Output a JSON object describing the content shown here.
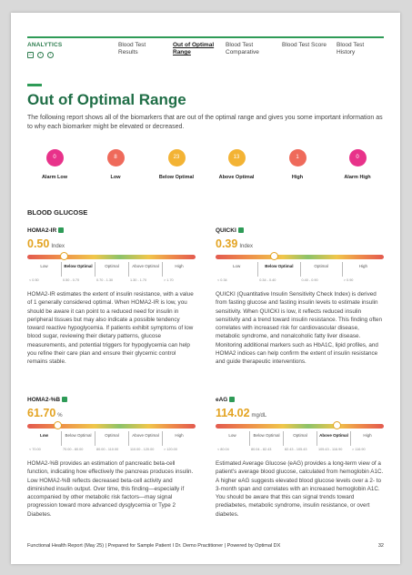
{
  "nav": {
    "brand": "ANALYTICS",
    "tabs": [
      {
        "label": "Blood Test Results"
      },
      {
        "label": "Out of Optimal Range"
      },
      {
        "label": "Blood Test Comparative"
      },
      {
        "label": "Blood Test Score"
      },
      {
        "label": "Blood Test History"
      }
    ],
    "icons": [
      "home-icon",
      "back-icon",
      "forward-icon"
    ]
  },
  "page": {
    "title": "Out of Optimal Range",
    "intro": "The following report shows all of the biomarkers that are out of the optimal range and gives you some important information as to why each biomarker might be elevated or decreased."
  },
  "legend": [
    {
      "count": "0",
      "label": "Alarm Low",
      "color": "#e8328a"
    },
    {
      "count": "8",
      "label": "Low",
      "color": "#ef6a5b"
    },
    {
      "count": "23",
      "label": "Below Optimal",
      "color": "#f3b334"
    },
    {
      "count": "13",
      "label": "Above Optimal",
      "color": "#f3b334"
    },
    {
      "count": "1",
      "label": "High",
      "color": "#ef6a5b"
    },
    {
      "count": "0",
      "label": "Alarm High",
      "color": "#e8328a"
    }
  ],
  "section": "BLOOD GLUCOSE",
  "markers": [
    {
      "name": "HOMA2-IR",
      "value": "0.50",
      "unit": "Index",
      "position_pct": 22,
      "zones": [
        "Low",
        "Below Optimal",
        "Optimal",
        "Above Optimal",
        "High"
      ],
      "bold_zone": 1,
      "ranges": [
        "< 0.50",
        "0.50 - 0.70",
        "0.70 - 1.30",
        "1.30 - 1.70",
        "> 1.70"
      ],
      "description": "HOMA2-IR estimates the extent of insulin resistance, with a value of 1 generally considered optimal. When HOMA2-IR is low, you should be aware it can point to a reduced need for insulin in peripheral tissues but may also indicate a possible tendency toward reactive hypoglycemia. If patients exhibit symptoms of low blood sugar, reviewing their dietary patterns, glucose measurements, and potential triggers for hypoglycemia can help you refine their care plan and ensure their glycemic control remains stable."
    },
    {
      "name": "QUICKI",
      "value": "0.39",
      "unit": "Index",
      "position_pct": 35,
      "zones": [
        "Low",
        "Below Optimal",
        "Optimal",
        "High"
      ],
      "bold_zone": 1,
      "ranges": [
        "< 0.34",
        "0.34 - 0.40",
        "0.40 - 0.90",
        "> 0.90"
      ],
      "description": "QUICKI (Quantitative Insulin Sensitivity Check Index) is derived from fasting glucose and fasting insulin levels to estimate insulin sensitivity. When QUICKI is low, it reflects reduced insulin sensitivity and a trend toward insulin resistance. This finding often correlates with increased risk for cardiovascular disease, metabolic syndrome, and nonalcoholic fatty liver disease. Monitoring additional markers such as HbA1C, lipid profiles, and HOMA2 indices can help confirm the extent of insulin resistance and guide therapeutic interventions."
    },
    {
      "name": "HOMA2-%B",
      "value": "61.70",
      "unit": "%",
      "position_pct": 18,
      "zones": [
        "Low",
        "Below Optimal",
        "Optimal",
        "Above Optimal",
        "High"
      ],
      "bold_zone": 0,
      "ranges": [
        "< 70.00",
        "70.00 - 80.00",
        "80.00 - 110.00",
        "110.00 - 120.00",
        "> 120.00"
      ],
      "description": "HOMA2-%B provides an estimation of pancreatic beta-cell function, indicating how effectively the pancreas produces insulin. Low HOMA2-%B reflects decreased beta-cell activity and diminished insulin output. Over time, this finding—especially if accompanied by other metabolic risk factors—may signal progression toward more advanced dysglycemia or Type 2 Diabetes."
    },
    {
      "name": "eAG",
      "value": "114.02",
      "unit": "mg/dL",
      "position_pct": 72,
      "zones": [
        "Low",
        "Below Optimal",
        "Optimal",
        "Above Optimal",
        "High"
      ],
      "bold_zone": 3,
      "ranges": [
        "< 80.04",
        "80.04 - 82.43",
        "82.43 - 105.43",
        "105.43 - 116.90",
        "> 116.90"
      ],
      "description": "Estimated Average Glucose (eAG) provides a long-term view of a patient's average blood glucose, calculated from hemoglobin A1C. A higher eAG suggests elevated blood glucose levels over a 2- to 3-month span and correlates with an increased hemoglobin A1C. You should be aware that this can signal trends toward prediabetes, metabolic syndrome, insulin resistance, or overt diabetes."
    }
  ],
  "footer": {
    "text": "Functional Health Report (May 25) | Prepared for Sample Patient I  Dr. Demo Practitioner | Powered by Optimal DX",
    "page": "32"
  }
}
